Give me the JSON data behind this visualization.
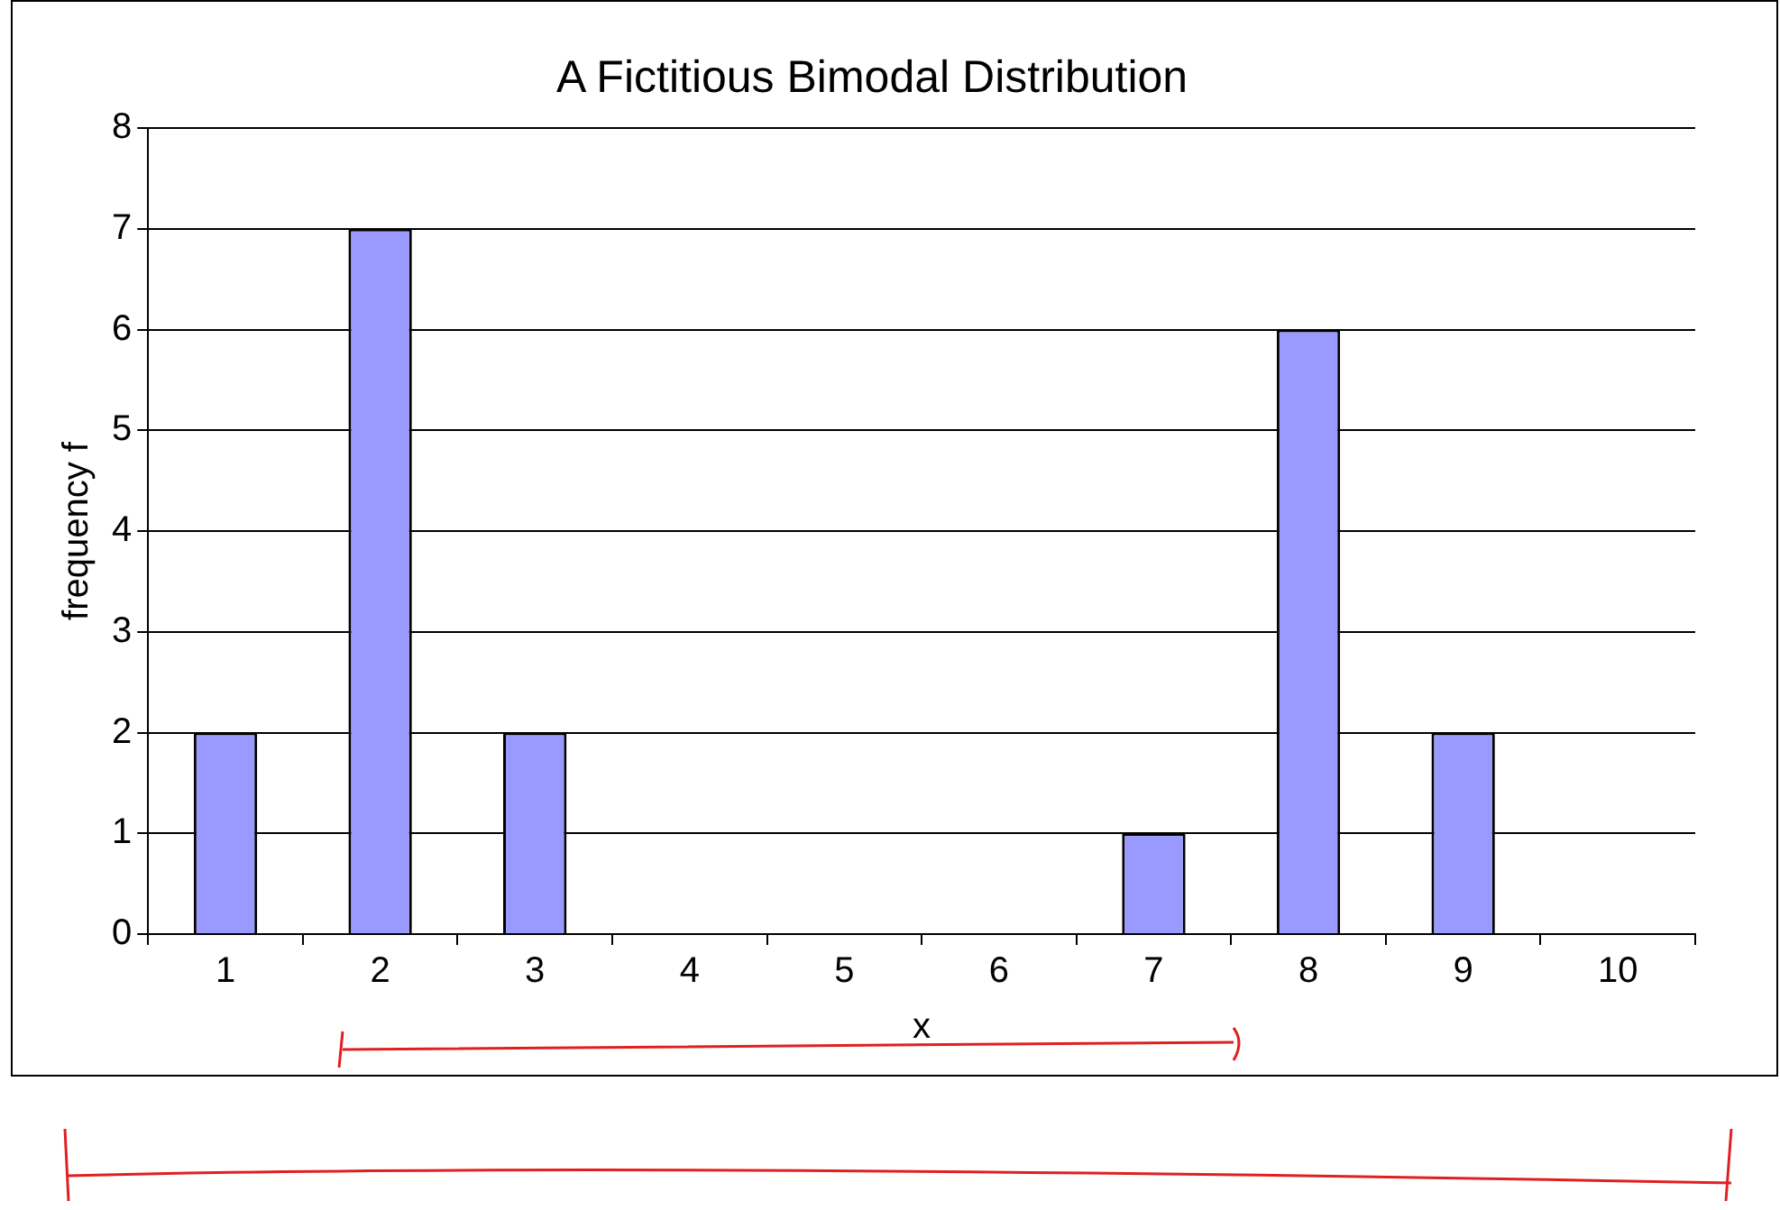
{
  "chart_data": {
    "type": "bar",
    "title": "A Fictitious Bimodal Distribution",
    "xlabel": "x",
    "ylabel": "frequency f",
    "categories": [
      "1",
      "2",
      "3",
      "4",
      "5",
      "6",
      "7",
      "8",
      "9",
      "10"
    ],
    "values": [
      2,
      7,
      2,
      0,
      0,
      0,
      1,
      6,
      2,
      0
    ],
    "color": "#9999ff",
    "ylim": [
      0,
      8
    ],
    "yticks": [
      0,
      1,
      2,
      3,
      4,
      5,
      6,
      7,
      8
    ],
    "grid": "y"
  }
}
